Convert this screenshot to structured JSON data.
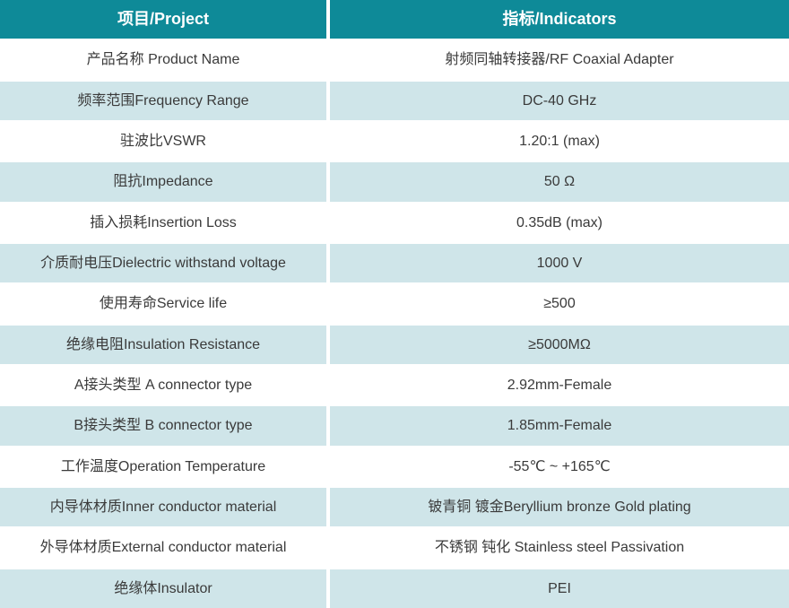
{
  "table": {
    "header": {
      "col1": "项目/Project",
      "col2": "指标/Indicators"
    },
    "rows": [
      {
        "project": "产品名称 Product Name",
        "indicator": "射频同轴转接器/RF Coaxial Adapter"
      },
      {
        "project": "频率范围Frequency Range",
        "indicator": "DC-40 GHz"
      },
      {
        "project": "驻波比VSWR",
        "indicator": "1.20:1 (max)"
      },
      {
        "project": "阻抗Impedance",
        "indicator": "50 Ω"
      },
      {
        "project": "插入损耗Insertion Loss",
        "indicator": "0.35dB (max)"
      },
      {
        "project": "介质耐电压Dielectric withstand voltage",
        "indicator": "1000 V"
      },
      {
        "project": "使用寿命Service life",
        "indicator": "≥500"
      },
      {
        "project": "绝缘电阻Insulation Resistance",
        "indicator": "≥5000MΩ"
      },
      {
        "project": "A接头类型 A connector type",
        "indicator": "2.92mm-Female"
      },
      {
        "project": "B接头类型 B connector type",
        "indicator": "1.85mm-Female"
      },
      {
        "project": "工作温度Operation Temperature",
        "indicator": "-55℃ ~ +165℃"
      },
      {
        "project": "内导体材质Inner conductor material",
        "indicator": "铍青铜 镀金Beryllium bronze Gold plating"
      },
      {
        "project": "外导体材质External conductor material",
        "indicator": "不锈钢 钝化 Stainless steel Passivation"
      },
      {
        "project": "绝缘体Insulator",
        "indicator": "PEI"
      }
    ],
    "colors": {
      "header_bg": "#0e8a98",
      "header_text": "#ffffff",
      "alt_row_bg": "#cfe5e9",
      "row_bg": "#ffffff",
      "body_text": "#3a3a3a"
    }
  }
}
